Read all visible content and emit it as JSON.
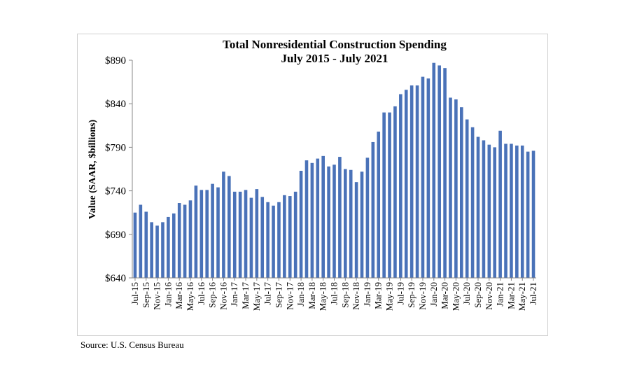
{
  "chart_data": {
    "type": "bar",
    "title": "Total Nonresidential Construction Spending",
    "subtitle": "July 2015 - July 2021",
    "xlabel": "",
    "ylabel": "Value (SAAR, $billions)",
    "ylim": [
      640,
      890
    ],
    "yticks": [
      "$640",
      "$690",
      "$740",
      "$790",
      "$840",
      "$890"
    ],
    "ytick_values": [
      640,
      690,
      740,
      790,
      840,
      890
    ],
    "grid": false,
    "bar_color": "#4a72b8",
    "categories": [
      "Jul-15",
      "Aug-15",
      "Sep-15",
      "Oct-15",
      "Nov-15",
      "Dec-15",
      "Jan-16",
      "Feb-16",
      "Mar-16",
      "Apr-16",
      "May-16",
      "Jun-16",
      "Jul-16",
      "Aug-16",
      "Sep-16",
      "Oct-16",
      "Nov-16",
      "Dec-16",
      "Jan-17",
      "Feb-17",
      "Mar-17",
      "Apr-17",
      "May-17",
      "Jun-17",
      "Jul-17",
      "Aug-17",
      "Sep-17",
      "Oct-17",
      "Nov-17",
      "Dec-17",
      "Jan-18",
      "Feb-18",
      "Mar-18",
      "Apr-18",
      "May-18",
      "Jun-18",
      "Jul-18",
      "Aug-18",
      "Sep-18",
      "Oct-18",
      "Nov-18",
      "Dec-18",
      "Jan-19",
      "Feb-19",
      "Mar-19",
      "Apr-19",
      "May-19",
      "Jun-19",
      "Jul-19",
      "Aug-19",
      "Sep-19",
      "Oct-19",
      "Nov-19",
      "Dec-19",
      "Jan-20",
      "Feb-20",
      "Mar-20",
      "Apr-20",
      "May-20",
      "Jun-20",
      "Jul-20",
      "Aug-20",
      "Sep-20",
      "Oct-20",
      "Nov-20",
      "Dec-20",
      "Jan-21",
      "Feb-21",
      "Mar-21",
      "Apr-21",
      "May-21",
      "Jun-21",
      "Jul-21"
    ],
    "tick_labels": [
      "Jul-15",
      "Sep-15",
      "Nov-15",
      "Jan-16",
      "Mar-16",
      "May-16",
      "Jul-16",
      "Sep-16",
      "Nov-16",
      "Jan-17",
      "Mar-17",
      "May-17",
      "Jul-17",
      "Sep-17",
      "Nov-17",
      "Jan-18",
      "Mar-18",
      "May-18",
      "Jul-18",
      "Sep-18",
      "Nov-18",
      "Jan-19",
      "Mar-19",
      "May-19",
      "Jul-19",
      "Sep-19",
      "Nov-19",
      "Jan-20",
      "Mar-20",
      "May-20",
      "Jul-20",
      "Sep-20",
      "Nov-20",
      "Jan-21",
      "Mar-21",
      "May-21",
      "Jul-21"
    ],
    "values": [
      715,
      724,
      716,
      704,
      700,
      704,
      710,
      714,
      726,
      724,
      729,
      746,
      741,
      741,
      748,
      744,
      762,
      757,
      739,
      739,
      741,
      732,
      742,
      733,
      727,
      723,
      727,
      735,
      734,
      739,
      763,
      775,
      772,
      777,
      780,
      768,
      770,
      779,
      765,
      764,
      750,
      762,
      778,
      796,
      808,
      830,
      830,
      837,
      851,
      856,
      861,
      861,
      871,
      869,
      887,
      884,
      881,
      847,
      845,
      836,
      822,
      813,
      802,
      798,
      793,
      790,
      809,
      794,
      794,
      792,
      792,
      785,
      786
    ]
  },
  "source": "Source:  U.S. Census Bureau"
}
